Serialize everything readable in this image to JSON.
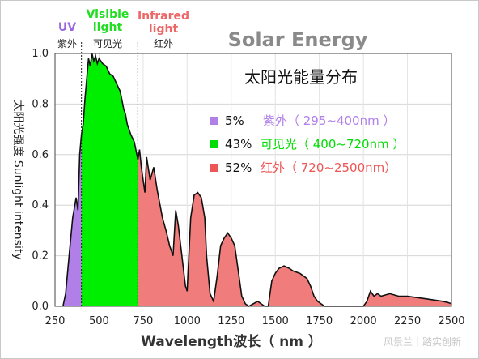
{
  "chart_data": {
    "type": "area",
    "title": "Solar Energy",
    "subtitle": "太阳光能量分布",
    "xlabel": "Wavelength波长（ nm ）",
    "ylabel": "太阳光强度 Sunlight intensity",
    "xlim": [
      250,
      2500
    ],
    "ylim": [
      0,
      1.0
    ],
    "xticks": [
      "250",
      "500",
      "750",
      "1000",
      "1250",
      "1500",
      "1750",
      "2000",
      "2250",
      "2500"
    ],
    "yticks": [
      "0.0",
      "0.2",
      "0.4",
      "0.6",
      "0.8",
      "1.0"
    ],
    "regions": [
      {
        "en": "UV",
        "zh": "紫外",
        "color": "#b07fe8",
        "range": [
          295,
          400
        ]
      },
      {
        "en": "Visible light",
        "zh": "可见光",
        "color": "#00ee00",
        "range": [
          400,
          720
        ]
      },
      {
        "en": "Infrared light",
        "zh": "红外",
        "color": "#f07c7c",
        "range": [
          720,
          2500
        ]
      }
    ],
    "legend": [
      {
        "pct": "5%",
        "label": "紫外（ 295~400nm ）",
        "color": "#b07fe8"
      },
      {
        "pct": "43%",
        "label": "可见光（ 400~720nm ）",
        "color": "#00dd00"
      },
      {
        "pct": "52%",
        "label": "红外（ 720~2500nm）",
        "color": "#ee5555"
      }
    ],
    "series": [
      {
        "x": [
          295,
          310,
          330,
          350,
          370,
          380,
          390,
          400,
          410,
          420,
          440,
          450,
          460,
          470,
          480,
          490,
          500,
          520,
          540,
          560,
          580,
          600,
          620,
          640,
          650,
          660,
          680,
          700,
          720,
          730,
          740,
          760,
          770,
          790,
          810,
          830,
          860,
          880,
          900,
          920,
          935,
          950,
          970,
          990,
          1000,
          1020,
          1040,
          1060,
          1080,
          1100,
          1110,
          1130,
          1150,
          1170,
          1190,
          1210,
          1230,
          1250,
          1270,
          1290,
          1310,
          1330,
          1350,
          1400,
          1420,
          1440,
          1460,
          1480,
          1500,
          1520,
          1550,
          1580,
          1600,
          1640,
          1680,
          1700,
          1720,
          1740,
          1760,
          1780,
          1800,
          1820,
          1850,
          1900,
          1950,
          2000,
          2020,
          2040,
          2060,
          2080,
          2100,
          2150,
          2200,
          2250,
          2300,
          2350,
          2400,
          2450,
          2480,
          2500
        ],
        "y": [
          0.0,
          0.05,
          0.2,
          0.35,
          0.43,
          0.38,
          0.6,
          0.68,
          0.72,
          0.82,
          0.98,
          0.95,
          1.0,
          0.97,
          0.99,
          0.96,
          0.98,
          0.96,
          0.95,
          0.92,
          0.91,
          0.88,
          0.85,
          0.78,
          0.76,
          0.72,
          0.68,
          0.65,
          0.58,
          0.62,
          0.55,
          0.45,
          0.59,
          0.5,
          0.55,
          0.46,
          0.35,
          0.3,
          0.24,
          0.2,
          0.38,
          0.32,
          0.2,
          0.08,
          0.06,
          0.35,
          0.44,
          0.45,
          0.43,
          0.35,
          0.2,
          0.05,
          0.02,
          0.12,
          0.24,
          0.27,
          0.29,
          0.27,
          0.24,
          0.14,
          0.04,
          0.01,
          0.0,
          0.02,
          0.01,
          0.0,
          0.0,
          0.1,
          0.13,
          0.15,
          0.16,
          0.15,
          0.14,
          0.13,
          0.11,
          0.08,
          0.04,
          0.02,
          0.01,
          0.0,
          0.0,
          0.0,
          0.0,
          0.0,
          0.0,
          0.0,
          0.02,
          0.06,
          0.04,
          0.05,
          0.04,
          0.05,
          0.04,
          0.04,
          0.035,
          0.03,
          0.025,
          0.02,
          0.015,
          0.01
        ]
      }
    ],
    "grid": true
  },
  "watermark": "风景兰｜踏实创新"
}
